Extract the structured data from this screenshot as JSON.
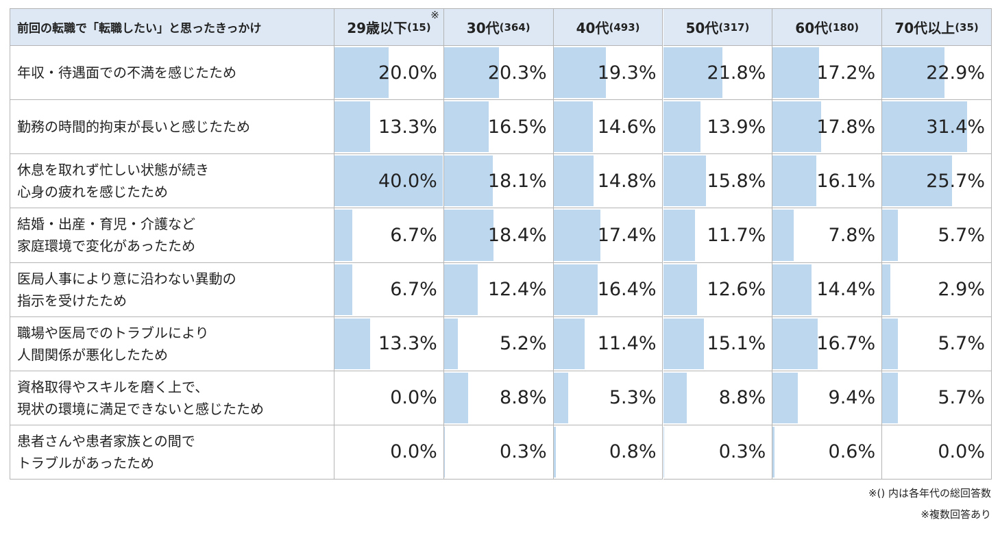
{
  "chart_data": {
    "type": "table-bar",
    "header": "前回の転職で「転職したい」と思ったきっかけ",
    "columns": [
      {
        "label": "29歳以下",
        "n": "(15)",
        "note": "※"
      },
      {
        "label": "30代",
        "n": "(364)"
      },
      {
        "label": "40代",
        "n": "(493)"
      },
      {
        "label": "50代",
        "n": "(317)"
      },
      {
        "label": "60代",
        "n": "(180)"
      },
      {
        "label": "70代以上",
        "n": "(35)"
      }
    ],
    "xlim": [
      0,
      40
    ],
    "color": "#bdd7ee",
    "rows": [
      {
        "label": [
          "年収・待遇面での不満を感じたため"
        ],
        "values": [
          20.0,
          20.3,
          19.3,
          21.8,
          17.2,
          22.9
        ],
        "value_labels": [
          "20.0%",
          "20.3%",
          "19.3%",
          "21.8%",
          "17.2%",
          "22.9%"
        ]
      },
      {
        "label": [
          "勤務の時間的拘束が長いと感じたため"
        ],
        "values": [
          13.3,
          16.5,
          14.6,
          13.9,
          17.8,
          31.4
        ],
        "value_labels": [
          "13.3%",
          "16.5%",
          "14.6%",
          "13.9%",
          "17.8%",
          "31.4%"
        ]
      },
      {
        "label": [
          "休息を取れず忙しい状態が続き",
          "心身の疲れを感じたため"
        ],
        "values": [
          40.0,
          18.1,
          14.8,
          15.8,
          16.1,
          25.7
        ],
        "value_labels": [
          "40.0%",
          "18.1%",
          "14.8%",
          "15.8%",
          "16.1%",
          "25.7%"
        ]
      },
      {
        "label": [
          "結婚・出産・育児・介護など",
          "家庭環境で変化があったため"
        ],
        "values": [
          6.7,
          18.4,
          17.4,
          11.7,
          7.8,
          5.7
        ],
        "value_labels": [
          "6.7%",
          "18.4%",
          "17.4%",
          "11.7%",
          "7.8%",
          "5.7%"
        ]
      },
      {
        "label": [
          "医局人事により意に沿わない異動の",
          "指示を受けたため"
        ],
        "values": [
          6.7,
          12.4,
          16.4,
          12.6,
          14.4,
          2.9
        ],
        "value_labels": [
          "6.7%",
          "12.4%",
          "16.4%",
          "12.6%",
          "14.4%",
          "2.9%"
        ]
      },
      {
        "label": [
          "職場や医局でのトラブルにより",
          "人間関係が悪化したため"
        ],
        "values": [
          13.3,
          5.2,
          11.4,
          15.1,
          16.7,
          5.7
        ],
        "value_labels": [
          "13.3%",
          "5.2%",
          "11.4%",
          "15.1%",
          "16.7%",
          "5.7%"
        ]
      },
      {
        "label": [
          "資格取得やスキルを磨く上で、",
          "現状の環境に満足できないと感じたため"
        ],
        "values": [
          0.0,
          8.8,
          5.3,
          8.8,
          9.4,
          5.7
        ],
        "value_labels": [
          "0.0%",
          "8.8%",
          "5.3%",
          "8.8%",
          "9.4%",
          "5.7%"
        ]
      },
      {
        "label": [
          "患者さんや患者家族との間で",
          "トラブルがあったため"
        ],
        "values": [
          0.0,
          0.3,
          0.8,
          0.3,
          0.6,
          0.0
        ],
        "value_labels": [
          "0.0%",
          "0.3%",
          "0.8%",
          "0.3%",
          "0.6%",
          "0.0%"
        ]
      }
    ],
    "notes": [
      "※() 内は各年代の総回答数",
      "※複数回答あり"
    ]
  }
}
